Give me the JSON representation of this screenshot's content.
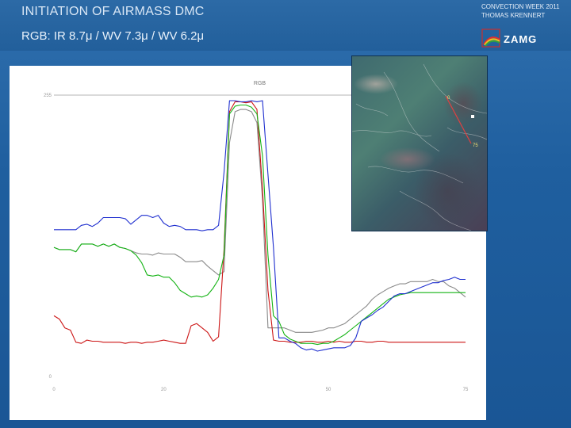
{
  "header": {
    "title": "INITIATION OF AIRMASS DMC",
    "subtitle": "RGB: IR 8.7μ / WV 7.3μ / WV 6.2μ"
  },
  "event": {
    "line1": "CONVECTION WEEK 2011",
    "line2": "THOMAS KRENNERT"
  },
  "logo": {
    "text": "ZAMG"
  },
  "satellite": {
    "start_label": "0",
    "end_label": "75"
  },
  "colors": {
    "blue": "#1f2fcf",
    "green": "#13b313",
    "red": "#cc1515",
    "gray": "#8a8a8a"
  },
  "chart_data": {
    "type": "line",
    "title": "RGB",
    "xlabel": "",
    "ylabel": "",
    "xlim": [
      0,
      75
    ],
    "ylim": [
      0,
      255
    ],
    "x_ticks": [
      "0",
      "20",
      "",
      "50",
      "75"
    ],
    "y_ticks": [
      "0",
      "255"
    ],
    "series": [
      {
        "color": "blue",
        "x": [
          0,
          1,
          2,
          3,
          4,
          5,
          6,
          7,
          8,
          9,
          10,
          11,
          12,
          13,
          14,
          15,
          16,
          17,
          18,
          19,
          20,
          21,
          22,
          23,
          24,
          25,
          26,
          27,
          28,
          29,
          30,
          31,
          32,
          33,
          34,
          35,
          36,
          37,
          38,
          39,
          40,
          41,
          42,
          43,
          44,
          45,
          46,
          47,
          48,
          49,
          50,
          51,
          52,
          53,
          54,
          55,
          56,
          57,
          58,
          59,
          60,
          61,
          62,
          63,
          64,
          65,
          66,
          67,
          68,
          69,
          70,
          71,
          72,
          73,
          74,
          75
        ],
        "y": [
          133,
          133,
          133,
          133,
          133,
          137,
          138,
          136,
          139,
          144,
          144,
          144,
          144,
          143,
          138,
          142,
          146,
          146,
          144,
          146,
          139,
          136,
          137,
          136,
          133,
          133,
          133,
          132,
          133,
          133,
          137,
          185,
          250,
          250,
          249,
          249,
          250,
          249,
          250,
          183,
          117,
          35,
          35,
          32,
          30,
          26,
          24,
          25,
          23,
          24,
          25,
          26,
          26,
          26,
          28,
          35,
          50,
          53,
          56,
          60,
          63,
          68,
          73,
          75,
          75,
          77,
          79,
          81,
          83,
          85,
          85,
          87,
          88,
          90,
          88,
          88
        ]
      },
      {
        "color": "green",
        "x": [
          0,
          1,
          2,
          3,
          4,
          5,
          6,
          7,
          8,
          9,
          10,
          11,
          12,
          13,
          14,
          15,
          16,
          17,
          18,
          19,
          20,
          21,
          22,
          23,
          24,
          25,
          26,
          27,
          28,
          29,
          30,
          31,
          32,
          33,
          34,
          35,
          36,
          37,
          38,
          39,
          40,
          41,
          42,
          43,
          44,
          45,
          46,
          47,
          48,
          49,
          50,
          51,
          52,
          53,
          54,
          55,
          56,
          57,
          58,
          59,
          60,
          61,
          62,
          63,
          64,
          65,
          66,
          67,
          68,
          69,
          70,
          71,
          72,
          73,
          74,
          75
        ],
        "y": [
          117,
          115,
          115,
          115,
          113,
          120,
          120,
          120,
          118,
          120,
          118,
          120,
          117,
          116,
          114,
          110,
          103,
          92,
          91,
          92,
          90,
          90,
          85,
          78,
          75,
          72,
          73,
          72,
          74,
          80,
          88,
          110,
          238,
          245,
          246,
          246,
          244,
          238,
          200,
          110,
          55,
          50,
          38,
          34,
          32,
          30,
          30,
          30,
          29,
          30,
          30,
          32,
          35,
          38,
          42,
          46,
          50,
          54,
          58,
          62,
          66,
          70,
          72,
          74,
          75,
          76,
          76,
          76,
          76,
          76,
          76,
          76,
          76,
          76,
          76,
          76
        ]
      },
      {
        "color": "red",
        "x": [
          0,
          1,
          2,
          3,
          4,
          5,
          6,
          7,
          8,
          9,
          10,
          11,
          12,
          13,
          14,
          15,
          16,
          17,
          18,
          19,
          20,
          21,
          22,
          23,
          24,
          25,
          26,
          27,
          28,
          29,
          30,
          31,
          32,
          33,
          34,
          35,
          36,
          37,
          38,
          39,
          40,
          41,
          42,
          43,
          44,
          45,
          46,
          47,
          48,
          49,
          50,
          51,
          52,
          53,
          54,
          55,
          56,
          57,
          58,
          59,
          60,
          61,
          62,
          63,
          64,
          65,
          66,
          67,
          68,
          69,
          70,
          71,
          72,
          73,
          74,
          75
        ],
        "y": [
          55,
          52,
          44,
          42,
          31,
          30,
          33,
          32,
          32,
          31,
          31,
          31,
          31,
          30,
          31,
          31,
          30,
          31,
          31,
          32,
          33,
          32,
          31,
          30,
          30,
          46,
          48,
          44,
          40,
          32,
          36,
          115,
          240,
          249,
          249,
          248,
          249,
          242,
          170,
          78,
          33,
          32,
          32,
          31,
          31,
          31,
          32,
          32,
          31,
          31,
          32,
          31,
          32,
          31,
          31,
          32,
          32,
          31,
          31,
          32,
          32,
          31,
          31,
          31,
          31,
          31,
          31,
          31,
          31,
          31,
          31,
          31,
          31,
          31,
          31,
          31
        ]
      },
      {
        "color": "gray",
        "x": [
          0,
          1,
          2,
          3,
          4,
          5,
          6,
          7,
          8,
          9,
          10,
          11,
          12,
          13,
          14,
          15,
          16,
          17,
          18,
          19,
          20,
          21,
          22,
          23,
          24,
          25,
          26,
          27,
          28,
          29,
          30,
          31,
          32,
          33,
          34,
          35,
          36,
          37,
          38,
          39,
          40,
          41,
          42,
          43,
          44,
          45,
          46,
          47,
          48,
          49,
          50,
          51,
          52,
          53,
          54,
          55,
          56,
          57,
          58,
          59,
          60,
          61,
          62,
          63,
          64,
          65,
          66,
          67,
          68,
          69,
          70,
          71,
          72,
          73,
          74,
          75
        ],
        "y": [
          117,
          115,
          115,
          115,
          113,
          120,
          120,
          120,
          118,
          120,
          118,
          120,
          117,
          116,
          114,
          112,
          111,
          111,
          110,
          112,
          111,
          111,
          111,
          108,
          104,
          104,
          104,
          105,
          100,
          96,
          92,
          95,
          212,
          240,
          242,
          242,
          240,
          230,
          160,
          44,
          44,
          44,
          44,
          42,
          40,
          40,
          40,
          40,
          41,
          42,
          44,
          44,
          46,
          48,
          52,
          56,
          60,
          64,
          70,
          74,
          77,
          80,
          82,
          84,
          84,
          86,
          86,
          86,
          86,
          88,
          86,
          86,
          82,
          80,
          76,
          72
        ]
      }
    ]
  }
}
